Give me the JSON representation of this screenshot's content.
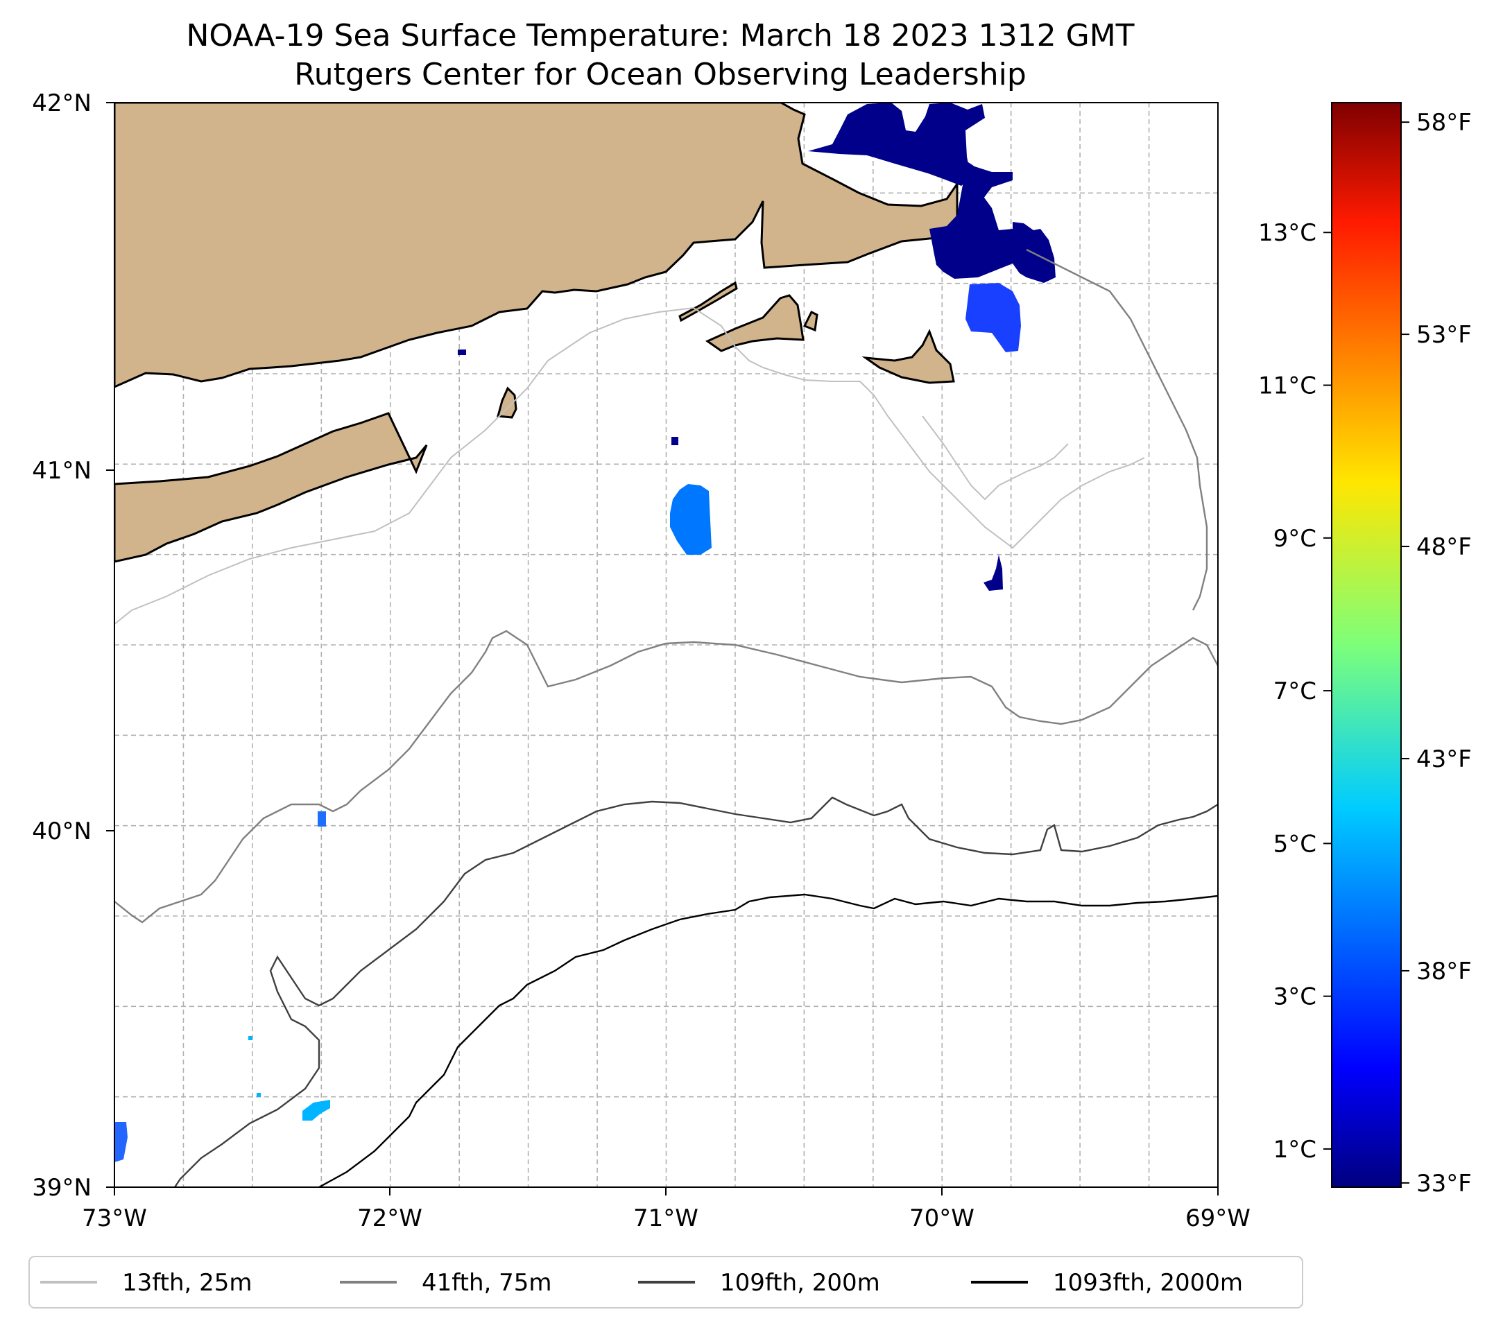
{
  "title": {
    "line1": "NOAA-19 Sea Surface Temperature: March 18 2023 1312 GMT",
    "line2": "Rutgers Center for Ocean Observing Leadership"
  },
  "map": {
    "lat_range": [
      39,
      42
    ],
    "lon_range": [
      -73,
      -69
    ],
    "lat_ticks": [
      "42°N",
      "41°N",
      "40°N",
      "39°N"
    ],
    "lon_ticks": [
      "73°W",
      "72°W",
      "71°W",
      "70°W",
      "69°W"
    ],
    "land_color": "#d2b48c",
    "ocean_color": "#ffffff",
    "gridlines": "dashed, every 0.25°",
    "sst_patches": [
      {
        "region": "Cape Cod Bay / outer Cape",
        "temp_c": 0.6
      },
      {
        "region": "southeast of Nantucket Sound",
        "temp_c": 3.0
      },
      {
        "region": "south of Martha's Vineyard",
        "temp_c": 4.2
      },
      {
        "region": "shelf near 40°N 72.25°W",
        "temp_c": 4.0
      },
      {
        "region": "shelf near 39.3°N 72.3°W",
        "temp_c": 5.0
      },
      {
        "region": "southwest corner",
        "temp_c": 3.8
      }
    ]
  },
  "colorbar": {
    "colormap": "jet",
    "celsius_range": [
      0.5,
      14.7
    ],
    "celsius_ticks": [
      "13°C",
      "11°C",
      "9°C",
      "7°C",
      "5°C",
      "3°C",
      "1°C"
    ],
    "fahrenheit_ticks": [
      "58°F",
      "53°F",
      "48°F",
      "43°F",
      "38°F",
      "33°F"
    ]
  },
  "legend": {
    "entries": [
      {
        "label": "13fth, 25m",
        "color": "#c0c0c0"
      },
      {
        "label": "41fth, 75m",
        "color": "#808080"
      },
      {
        "label": "109fth, 200m",
        "color": "#404040"
      },
      {
        "label": "1093fth, 2000m",
        "color": "#000000"
      }
    ]
  }
}
